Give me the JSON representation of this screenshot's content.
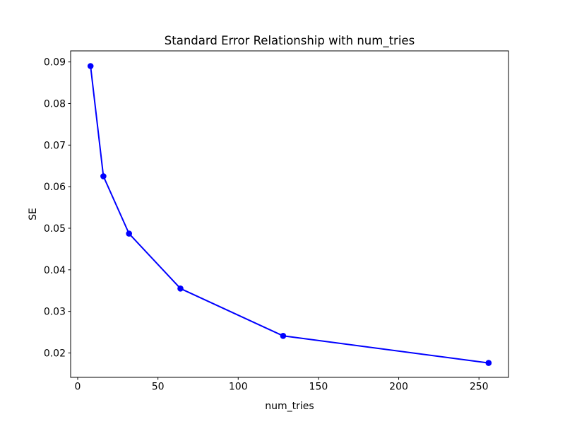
{
  "figure": {
    "background": "#ffffff",
    "accent_color": "#0000ff",
    "text_color": "#000000"
  },
  "chart_data": {
    "type": "line",
    "title": "Standard Error Relationship with num_tries",
    "xlabel": "num_tries",
    "ylabel": "SE",
    "grid": false,
    "legend": null,
    "xlim": [
      -4.4,
      268.4
    ],
    "ylim": [
      0.01413,
      0.09266
    ],
    "xticks": {
      "values": [
        0,
        50,
        100,
        150,
        200,
        250
      ],
      "labels": [
        "0",
        "50",
        "100",
        "150",
        "200",
        "250"
      ]
    },
    "yticks": {
      "values": [
        0.02,
        0.03,
        0.04,
        0.05,
        0.06,
        0.07,
        0.08,
        0.09
      ],
      "labels": [
        "0.02",
        "0.03",
        "0.04",
        "0.05",
        "0.06",
        "0.07",
        "0.08",
        "0.09"
      ]
    },
    "series": [
      {
        "name": "SE",
        "color": "#0000ff",
        "marker": "circle",
        "line_width": 2,
        "marker_radius": 4.3,
        "x": [
          8,
          16,
          32,
          64,
          128,
          256
        ],
        "y": [
          0.089,
          0.0625,
          0.0487,
          0.0355,
          0.0241,
          0.0176
        ]
      }
    ]
  }
}
